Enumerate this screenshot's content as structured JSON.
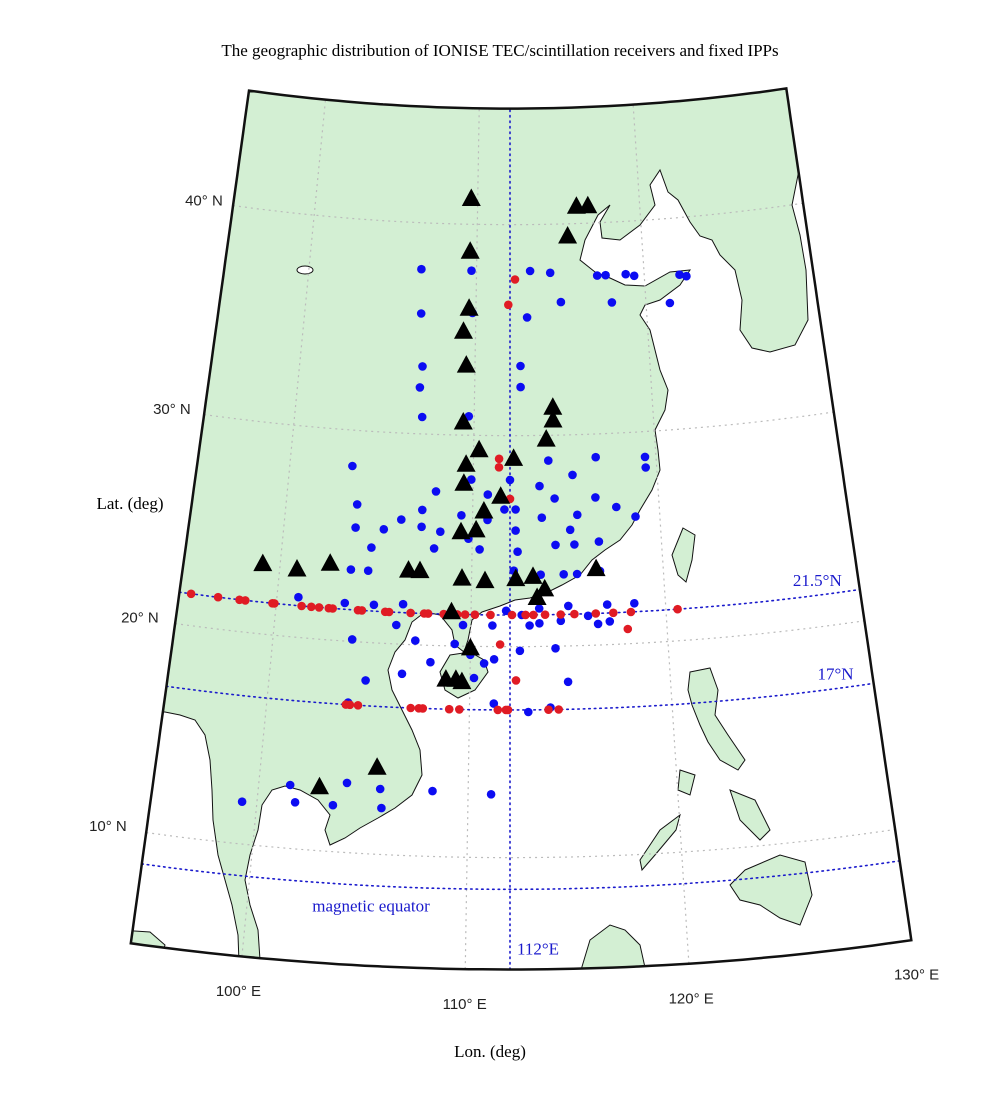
{
  "chart_data": {
    "type": "scatter",
    "title": "The geographic distribution of IONISE TEC/scintillation receivers and fixed IPPs",
    "x_label": "Lon. (deg)",
    "y_label": "Lat. (deg)",
    "xlim": [
      95,
      130
    ],
    "ylim": [
      4.7,
      45.5
    ],
    "xticks": [
      {
        "value": 100,
        "label": "100° E"
      },
      {
        "value": 110,
        "label": "110° E"
      },
      {
        "value": 120,
        "label": "120° E"
      },
      {
        "value": 130,
        "label": "130° E"
      }
    ],
    "yticks": [
      {
        "value": 10,
        "label": "10° N"
      },
      {
        "value": 20,
        "label": "20° N"
      },
      {
        "value": 30,
        "label": "30° N"
      },
      {
        "value": 40,
        "label": "40° N"
      }
    ],
    "grid": true,
    "ref_lines": [
      {
        "lat": 21.5,
        "label": "21.5°N",
        "color": "#1a1acc"
      },
      {
        "lat": 17,
        "label": "17°N",
        "color": "#1a1acc"
      },
      {
        "lat": 8.5,
        "label": "magnetic equator",
        "color": "#1a1acc"
      },
      {
        "lon": 112,
        "label": "112°E",
        "color": "#1a1acc"
      }
    ],
    "series": [
      {
        "color": "#0c0cf2",
        "marker": "circle",
        "x": [
          106.7,
          109.7,
          113.2,
          114.4,
          117.2,
          117.7,
          118.9,
          119.4,
          122.1,
          122.5,
          106.8,
          109.8,
          113.0,
          115.0,
          118.0,
          121.4,
          107.0,
          112.6,
          106.9,
          112.6,
          107.1,
          109.7,
          103.4,
          114.1,
          116.7,
          119.4,
          119.4,
          109.9,
          112.0,
          115.4,
          108.0,
          110.8,
          113.6,
          103.8,
          107.3,
          111.7,
          112.3,
          114.4,
          116.6,
          117.7,
          118.7,
          106.2,
          109.4,
          115.6,
          103.8,
          107.3,
          110.8,
          113.7,
          105.3,
          108.3,
          109.8,
          112.3,
          115.2,
          116.7,
          104.7,
          108.0,
          110.4,
          112.4,
          114.4,
          115.4,
          103.7,
          104.6,
          112.2,
          113.6,
          114.8,
          115.5,
          116.7,
          101.1,
          103.5,
          105.0,
          106.5,
          111.8,
          113.5,
          115.0,
          117.0,
          118.4,
          104.0,
          106.2,
          107.2,
          109.6,
          111.1,
          112.6,
          113.0,
          113.5,
          114.6,
          116.0,
          116.5,
          117.1,
          109.2,
          110.0,
          110.7,
          111.2,
          112.5,
          114.3,
          108.0,
          110.2,
          114.9,
          104.8,
          106.6,
          104.0,
          111.2,
          112.9,
          114.0,
          99.3,
          101.5,
          101.8,
          103.6,
          104.2,
          105.8,
          105.9,
          108.3,
          111.1
        ],
        "values": [
          37.8,
          37.8,
          37.8,
          37.7,
          37.5,
          37.5,
          37.5,
          37.4,
          37.3,
          37.2,
          35.7,
          35.8,
          35.6,
          36.3,
          36.2,
          36.0,
          33.2,
          33.3,
          32.2,
          32.3,
          30.8,
          30.9,
          28.3,
          28.8,
          28.9,
          28.8,
          28.3,
          27.9,
          27.9,
          28.1,
          27.3,
          27.2,
          27.6,
          26.5,
          26.4,
          26.5,
          26.5,
          27.0,
          27.0,
          26.5,
          26.0,
          25.9,
          26.2,
          26.2,
          25.4,
          25.6,
          26.0,
          26.1,
          25.4,
          25.4,
          25.1,
          25.5,
          25.5,
          24.9,
          24.5,
          24.6,
          24.6,
          24.5,
          24.8,
          24.8,
          23.4,
          23.4,
          23.6,
          23.4,
          23.4,
          23.4,
          23.5,
          21.9,
          21.8,
          21.8,
          21.9,
          21.7,
          21.8,
          21.9,
          21.9,
          21.9,
          20.1,
          20.9,
          20.2,
          21.0,
          21.0,
          21.5,
          21.0,
          21.1,
          21.2,
          21.4,
          21.0,
          21.1,
          20.1,
          19.6,
          19.2,
          19.4,
          19.8,
          19.9,
          19.2,
          18.5,
          18.3,
          18.2,
          18.6,
          17.1,
          17.3,
          16.9,
          17.1,
          12.0,
          13.0,
          12.2,
          12.2,
          13.3,
          13.1,
          12.2,
          13.1,
          13.0
        ]
      },
      {
        "color": "#e01b24",
        "marker": "circle",
        "x": [
          95.6,
          97.0,
          98.1,
          98.4,
          99.8,
          99.9,
          101.3,
          101.8,
          102.2,
          102.7,
          102.9,
          104.2,
          104.4,
          105.6,
          105.8,
          106.9,
          107.6,
          107.8,
          108.6,
          109.3,
          109.7,
          110.2,
          111.0,
          112.1,
          112.8,
          113.2,
          113.8,
          114.6,
          115.3,
          116.4,
          117.3,
          118.2,
          120.6,
          103.9,
          104.1,
          104.5,
          107.1,
          107.5,
          107.7,
          109.0,
          109.5,
          111.4,
          111.8,
          111.9,
          113.9,
          114.4,
          112.3,
          111.9,
          111.4,
          111.4,
          112.0,
          111.5,
          112.3,
          118.0
        ],
        "values": [
          21.5,
          21.5,
          21.5,
          21.5,
          21.5,
          21.5,
          21.5,
          21.5,
          21.5,
          21.5,
          21.5,
          21.5,
          21.5,
          21.5,
          21.5,
          21.5,
          21.5,
          21.5,
          21.5,
          21.5,
          21.5,
          21.5,
          21.5,
          21.5,
          21.5,
          21.5,
          21.5,
          21.5,
          21.5,
          21.5,
          21.5,
          21.5,
          21.5,
          17,
          17,
          17,
          17,
          17,
          17,
          17,
          17,
          17,
          17,
          17,
          17,
          17,
          37.4,
          36.2,
          28.9,
          28.5,
          27.0,
          20.1,
          18.4,
          20.7
        ]
      },
      {
        "color": "#000000",
        "marker": "triangle",
        "x": [
          109.6,
          116.1,
          116.8,
          115.5,
          109.6,
          109.6,
          109.3,
          109.5,
          114.4,
          114.4,
          109.4,
          114.0,
          110.3,
          109.6,
          112.2,
          109.5,
          111.5,
          110.6,
          109.4,
          110.2,
          99.1,
          100.9,
          102.6,
          106.7,
          107.3,
          109.5,
          110.7,
          112.3,
          113.2,
          113.8,
          113.4,
          116.5,
          109.0,
          110.0,
          108.8,
          109.3,
          109.6,
          105.6,
          102.9
        ],
        "values": [
          41.2,
          40.8,
          40.8,
          39.4,
          38.7,
          36.0,
          34.9,
          33.3,
          31.3,
          30.7,
          30.6,
          29.8,
          29.3,
          28.6,
          28.9,
          27.7,
          27.1,
          26.4,
          25.4,
          25.5,
          23.3,
          23.2,
          23.6,
          23.5,
          23.5,
          23.2,
          23.1,
          23.2,
          23.3,
          22.7,
          22.3,
          23.6,
          21.6,
          19.9,
          18.4,
          18.4,
          18.3,
          14.1,
          13.0
        ]
      }
    ]
  }
}
